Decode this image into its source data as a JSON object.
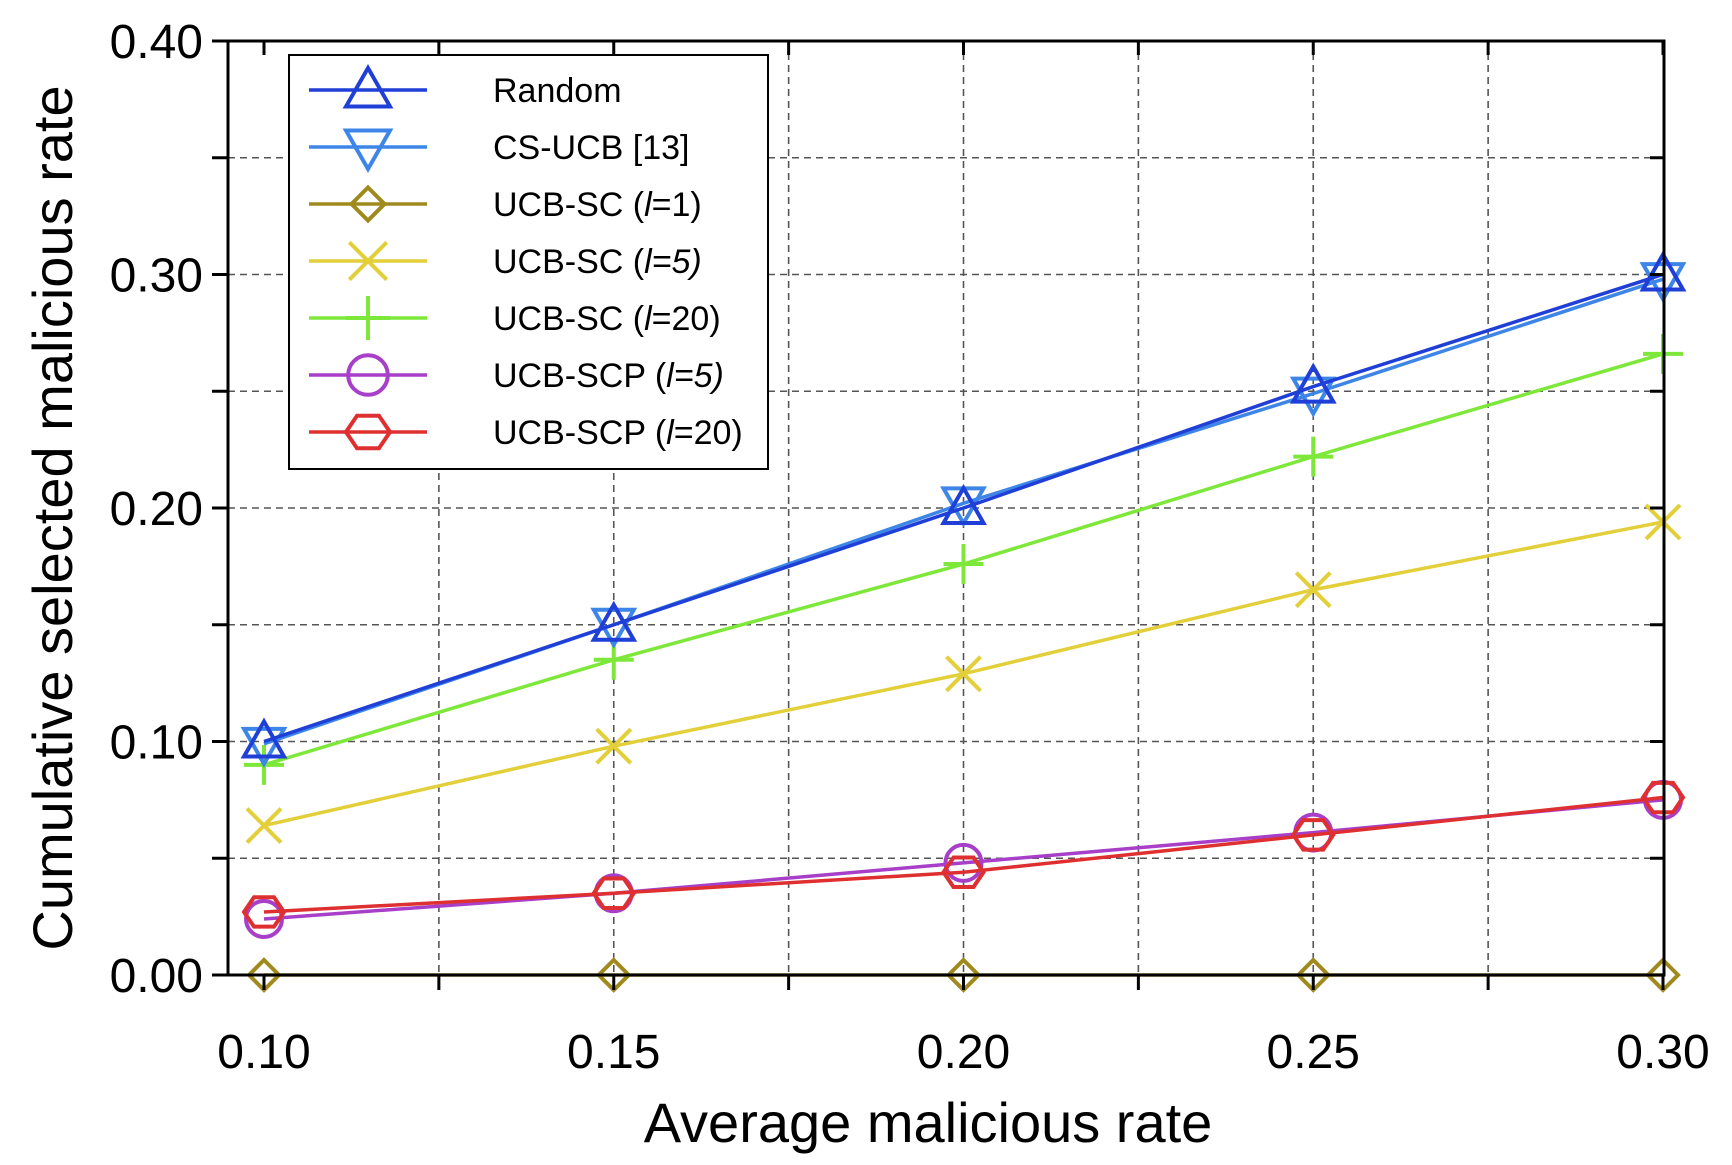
{
  "chart_data": {
    "type": "line",
    "title": "",
    "xlabel": "Average malicious rate",
    "ylabel": "Cumulative selected malicious rate",
    "x": [
      0.1,
      0.15,
      0.2,
      0.25,
      0.3
    ],
    "xticks": [
      "0.10",
      "0.15",
      "0.20",
      "0.25",
      "0.30"
    ],
    "yticks": [
      "0.00",
      "0.10",
      "0.20",
      "0.30",
      "0.40"
    ],
    "xlim": [
      0.1,
      0.3
    ],
    "ylim": [
      0.0,
      0.4
    ],
    "grid": true,
    "legend_position": "top-left",
    "series": [
      {
        "name": "Random",
        "label_pre": "Random",
        "label_it": "",
        "label_post": "",
        "color": "#1f3fd6",
        "marker": "triangle-up",
        "values": [
          0.1,
          0.15,
          0.2,
          0.252,
          0.3
        ]
      },
      {
        "name": "CS-UCB [13]",
        "label_pre": "CS-UCB [13]",
        "label_it": "",
        "label_post": "",
        "color": "#3d86e8",
        "marker": "triangle-down",
        "values": [
          0.099,
          0.15,
          0.202,
          0.249,
          0.298
        ]
      },
      {
        "name": "UCB-SC (l=1)",
        "label_pre": "UCB-SC (",
        "label_it": "l",
        "label_post": "=1)",
        "color": "#a08a1e",
        "marker": "diamond",
        "values": [
          0.0,
          0.0,
          0.0,
          0.0,
          0.0
        ]
      },
      {
        "name": "UCB-SC (l=5)",
        "label_pre": "UCB-SC (",
        "label_it": "l=5)",
        "label_post": "",
        "color": "#e2cf3a",
        "marker": "x",
        "values": [
          0.064,
          0.098,
          0.129,
          0.165,
          0.194
        ]
      },
      {
        "name": "UCB-SC (l=20)",
        "label_pre": "UCB-SC (",
        "label_it": "l",
        "label_post": "=20)",
        "color": "#7ee83a",
        "marker": "plus",
        "values": [
          0.09,
          0.135,
          0.176,
          0.222,
          0.266
        ]
      },
      {
        "name": "UCB-SCP (l=5)",
        "label_pre": "UCB-SCP (",
        "label_it": "l=5)",
        "label_post": "",
        "color": "#a83fc9",
        "marker": "circle",
        "values": [
          0.024,
          0.035,
          0.048,
          0.061,
          0.075
        ]
      },
      {
        "name": "UCB-SCP (l=20)",
        "label_pre": "UCB-SCP (",
        "label_it": "l",
        "label_post": "=20)",
        "color": "#de3030",
        "marker": "hexagon",
        "values": [
          0.027,
          0.035,
          0.044,
          0.06,
          0.076
        ]
      }
    ]
  }
}
